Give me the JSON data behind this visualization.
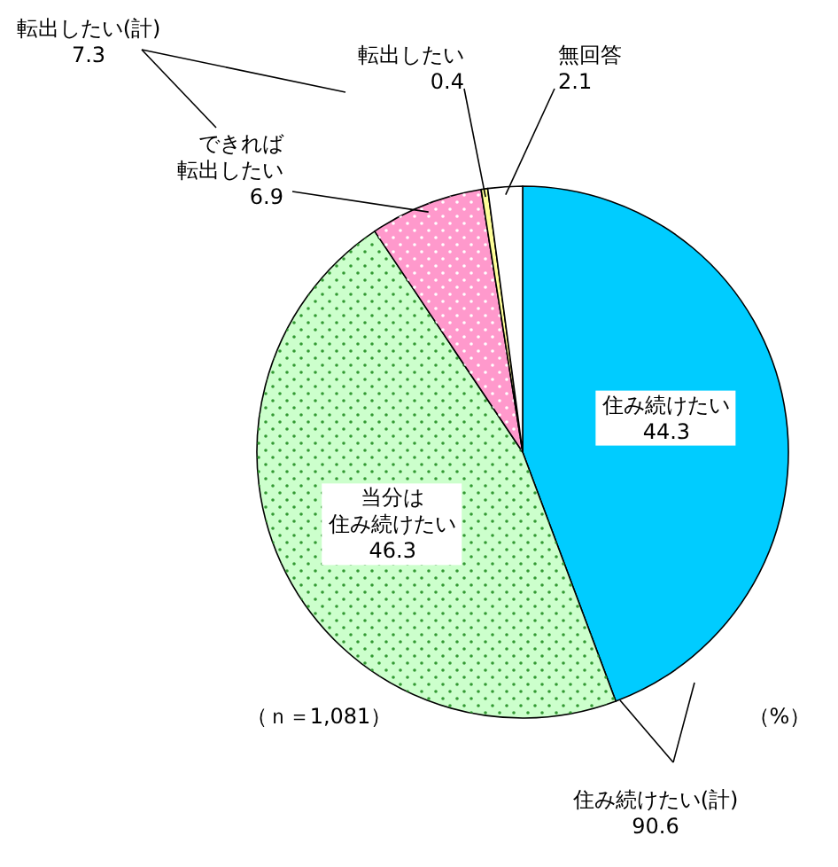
{
  "chart_data": {
    "type": "pie",
    "categories": [
      "住み続けたい",
      "当分は住み続けたい",
      "できれば転出したい",
      "転出したい",
      "無回答"
    ],
    "values": [
      44.3,
      46.3,
      6.9,
      0.4,
      2.1
    ],
    "colors": [
      "#00ccff",
      "#ccffcc",
      "#ff99cc",
      "#ffff99",
      "#ffffff"
    ],
    "data_labels": true,
    "annotations": [
      "転出したい(計)\n7.3",
      "住み続けたい(計)\n90.6",
      "（ｎ＝1,081）",
      "（%）"
    ]
  }
}
